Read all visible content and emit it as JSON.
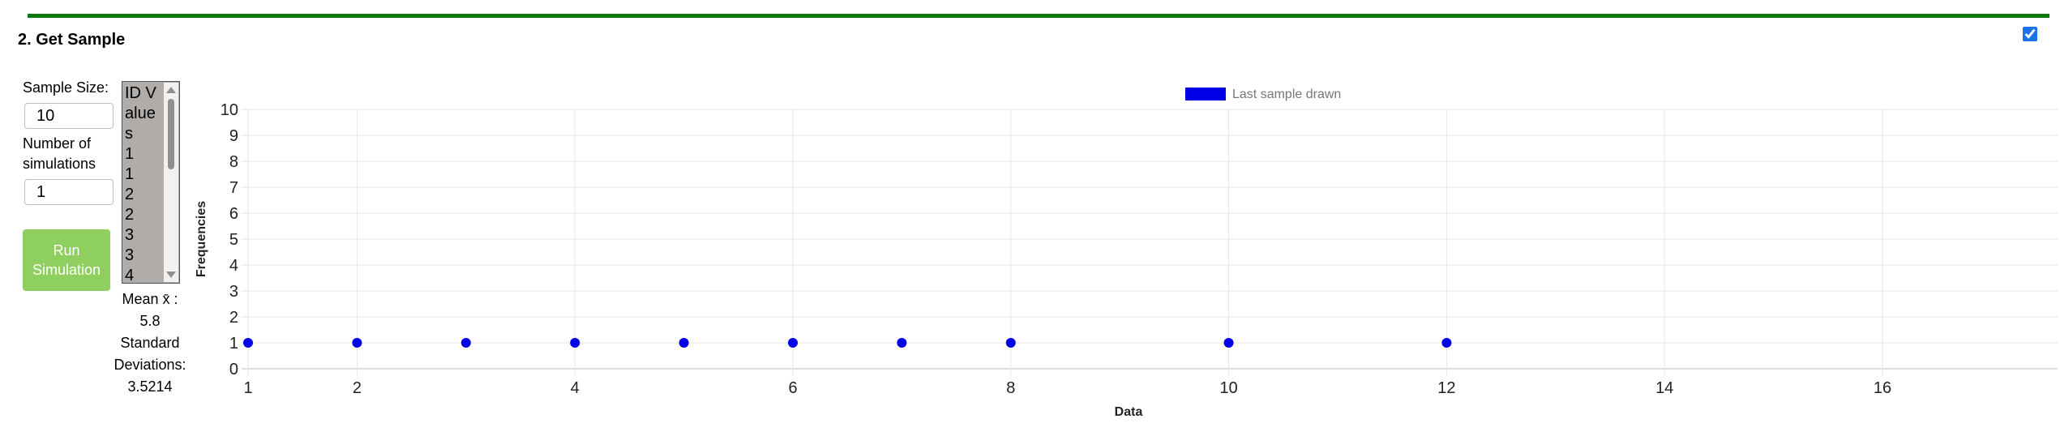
{
  "section": {
    "title": "2. Get Sample",
    "checkbox_checked": true
  },
  "controls": {
    "sample_size_label": "Sample Size:",
    "sample_size_value": "10",
    "num_sims_label": "Number of simulations",
    "num_sims_value": "1",
    "run_button_label": "Run Simulation"
  },
  "id_list": {
    "header": "ID Values",
    "values": [
      "1",
      "1",
      "2",
      "2",
      "3",
      "3",
      "4"
    ]
  },
  "stats": {
    "mean_label": "Mean x̄ :",
    "mean_value": "5.8",
    "sd_label": "Standard Deviations:",
    "sd_value": "3.5214"
  },
  "chart_data": {
    "type": "scatter",
    "legend": "Last sample drawn",
    "legend_position": "top-center",
    "xlabel": "Data",
    "ylabel": "Frequencies",
    "x_ticks": [
      1,
      2,
      4,
      6,
      8,
      10,
      12,
      14,
      16
    ],
    "y_ticks": [
      0,
      1,
      2,
      3,
      4,
      5,
      6,
      7,
      8,
      9,
      10
    ],
    "xlim": [
      1,
      17.6
    ],
    "ylim": [
      0,
      10
    ],
    "grid": true,
    "series": [
      {
        "name": "Last sample drawn",
        "color": "#0000e6",
        "points": [
          [
            1,
            1
          ],
          [
            2,
            1
          ],
          [
            3,
            1
          ],
          [
            4,
            1
          ],
          [
            5,
            1
          ],
          [
            6,
            1
          ],
          [
            7,
            1
          ],
          [
            8,
            1
          ],
          [
            10,
            1
          ],
          [
            12,
            1
          ]
        ]
      }
    ]
  }
}
